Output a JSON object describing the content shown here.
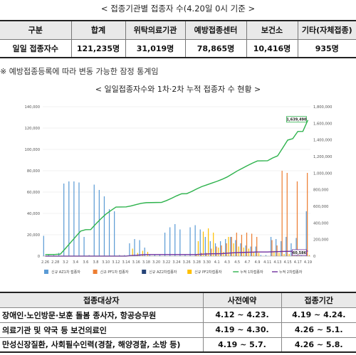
{
  "section1_title": "< 접종기관별 접종자 수(4.20일 0시 기준 >",
  "table1": {
    "headers": [
      "구분",
      "합계",
      "위탁의료기관",
      "예방접종센터",
      "보건소",
      "기타(자체접종)"
    ],
    "row": [
      "일일 접종자수",
      "121,235명",
      "31,019명",
      "78,865명",
      "10,416명",
      "935명"
    ]
  },
  "note": "※ 예방접종등록에 따라 변동 가능한 잠정 통계임",
  "section2_title": "< 일일접종자수와 1차·2차 누적 접종자 수 현황 >",
  "chart_data": {
    "type": "bar",
    "x": [
      "2.26",
      "2.27",
      "2.28",
      "3.1",
      "3.2",
      "3.3",
      "3.4",
      "3.5",
      "3.6",
      "3.7",
      "3.8",
      "3.9",
      "3.10",
      "3.11",
      "3.12",
      "3.13",
      "3.14",
      "3.15",
      "3.16",
      "3.17",
      "3.18",
      "3.19",
      "3.20",
      "3.21",
      "3.22",
      "3.23",
      "3.24",
      "3.25",
      "3.26",
      "3.27",
      "3.28",
      "3.29",
      "3.30",
      "3.31",
      "4.1",
      "4.2",
      "4.3",
      "4.4",
      "4.5",
      "4.6",
      "4.7",
      "4.8",
      "4.9",
      "4.10",
      "4.11",
      "4.12",
      "4.13",
      "4.14",
      "4.15",
      "4.16",
      "4.17",
      "4.18",
      "4.19"
    ],
    "x_tick_labels": [
      "2.26",
      "2.28",
      "3.2",
      "3.4",
      "3.6",
      "3.8",
      "3.10",
      "3.12",
      "3.14",
      "3.16",
      "3.18",
      "3.20",
      "3.22",
      "3.24",
      "3.26",
      "3.28",
      "3.30",
      "4.1",
      "4.3",
      "4.5",
      "4.7",
      "4.9",
      "4.11",
      "4.13",
      "4.15",
      "4.17",
      "4.19"
    ],
    "y_left": {
      "range": [
        0,
        140000
      ],
      "ticks": [
        "0",
        "20,000",
        "40,000",
        "60,000",
        "80,000",
        "100,000",
        "120,000",
        "140,000"
      ]
    },
    "y_right": {
      "range": [
        0,
        1800000
      ],
      "ticks": [
        "0",
        "200,000",
        "400,000",
        "600,000",
        "800,000",
        "1,000,000",
        "1,200,000",
        "1,400,000",
        "1,600,000",
        "1,800,000"
      ]
    },
    "series": [
      {
        "name": "신규 AZ1차 접종자",
        "color": "#5b9bd5",
        "axis": "left",
        "values": [
          19000,
          1000,
          1000,
          3000,
          68000,
          70000,
          70000,
          69000,
          18000,
          1000,
          67000,
          62000,
          56000,
          44000,
          42000,
          1000,
          1000,
          12000,
          16000,
          15000,
          8000,
          1000,
          1000,
          1000,
          22000,
          27000,
          30000,
          25000,
          1000,
          27000,
          29000,
          25000,
          18000,
          14000,
          12000,
          14000,
          16000,
          18000,
          15000,
          12000,
          10000,
          9000,
          9000,
          1000,
          1000,
          18000,
          16000,
          14000,
          18000,
          12000,
          17000,
          1000,
          42000
        ]
      },
      {
        "name": "신규 PF1차 접종자",
        "color": "#ed7d31",
        "axis": "left",
        "values": [
          0,
          0,
          0,
          0,
          0,
          0,
          0,
          0,
          0,
          0,
          0,
          0,
          0,
          0,
          0,
          0,
          0,
          0,
          0,
          0,
          0,
          0,
          0,
          0,
          0,
          0,
          0,
          0,
          0,
          0,
          2000,
          3000,
          3000,
          7000,
          9000,
          10000,
          12000,
          18000,
          22000,
          20000,
          22000,
          21000,
          18000,
          0,
          0,
          15000,
          10000,
          80000,
          78000,
          5000,
          70000,
          0,
          78000
        ]
      },
      {
        "name": "신규 AZ2차접종자",
        "color": "#264478",
        "axis": "left",
        "values": [
          0,
          0,
          0,
          0,
          0,
          0,
          0,
          0,
          0,
          0,
          0,
          0,
          0,
          0,
          0,
          0,
          0,
          0,
          0,
          0,
          0,
          0,
          0,
          0,
          0,
          0,
          0,
          0,
          0,
          0,
          0,
          0,
          0,
          0,
          0,
          0,
          0,
          0,
          0,
          0,
          0,
          0,
          0,
          0,
          0,
          0,
          0,
          0,
          0,
          0,
          0,
          0,
          0
        ]
      },
      {
        "name": "신규 PF2차접종자",
        "color": "#ffc000",
        "axis": "left",
        "values": [
          0,
          0,
          0,
          0,
          0,
          0,
          0,
          0,
          0,
          0,
          0,
          0,
          0,
          0,
          0,
          0,
          0,
          7000,
          3000,
          5000,
          4000,
          0,
          0,
          0,
          0,
          0,
          0,
          0,
          0,
          0,
          14000,
          23000,
          26000,
          22000,
          8000,
          4000,
          18000,
          12000,
          9000,
          8000,
          7000,
          4000,
          3000,
          0,
          0,
          5000,
          3000,
          2000,
          2000,
          1000,
          2000,
          0,
          1000
        ]
      },
      {
        "name": "누적 1차접종자",
        "color": "#2db24c",
        "axis": "right",
        "chart": "line",
        "values": [
          19000,
          20000,
          21000,
          24000,
          92000,
          162000,
          232000,
          301000,
          319000,
          320000,
          387000,
          449000,
          505000,
          549000,
          591000,
          592000,
          593000,
          605000,
          621000,
          636000,
          644000,
          645000,
          646000,
          647000,
          669000,
          696000,
          726000,
          751000,
          752000,
          779000,
          810000,
          838000,
          859000,
          880000,
          901000,
          925000,
          953000,
          989000,
          1026000,
          1058000,
          1090000,
          1120000,
          1147000,
          1148000,
          1149000,
          1182000,
          1208000,
          1302000,
          1398000,
          1415000,
          1502000,
          1503000,
          1639490
        ],
        "end_label": "1,639,490"
      },
      {
        "name": "누적 2차접종자",
        "color": "#7030a0",
        "axis": "right",
        "chart": "line",
        "values": [
          0,
          0,
          0,
          0,
          0,
          0,
          0,
          0,
          0,
          0,
          0,
          0,
          0,
          0,
          0,
          0,
          0,
          7000,
          10000,
          15000,
          19000,
          19000,
          19000,
          19000,
          19000,
          19000,
          19000,
          19000,
          19000,
          19000,
          20000,
          23000,
          26000,
          28000,
          29000,
          30000,
          35000,
          39000,
          42000,
          44000,
          46000,
          48000,
          50000,
          50000,
          50000,
          52000,
          54000,
          56000,
          57000,
          58000,
          59000,
          59500,
          60586
        ],
        "end_label": "60,586"
      }
    ]
  },
  "table2": {
    "headers": [
      "접종대상자",
      "사전예약",
      "접종기간"
    ],
    "rows": [
      [
        "장애인·노인방문·보훈 돌봄 종사자, 항공승무원",
        "4.12 ~ 4.23.",
        "4.19 ~ 4.24."
      ],
      [
        "의료기관 및 약국 등 보건의료인",
        "4.19 ~ 4.30.",
        "4.26 ~ 5.1."
      ],
      [
        "만성신장질환, 사회필수인력(경찰, 해양경찰, 소방 등)",
        "4.19 ~ 5.7.",
        "4.26 ~ 5.8."
      ]
    ]
  }
}
